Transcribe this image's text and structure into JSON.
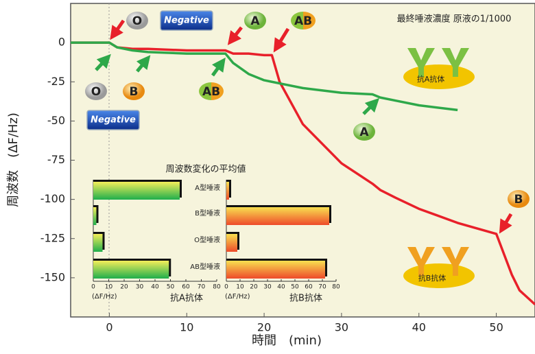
{
  "chart_data": [
    {
      "type": "line",
      "xlabel": "時間　(min)",
      "ylabel": "周波数　(ΔF/Hz)",
      "x": [
        -5,
        0,
        1,
        3,
        5,
        10,
        15,
        16,
        18,
        20,
        21,
        22,
        25,
        30,
        34,
        35,
        37,
        40,
        45,
        50,
        51,
        52,
        53,
        55
      ],
      "series": [
        {
          "name": "red",
          "color": "#e8202a",
          "values": [
            0,
            0,
            -3,
            -4,
            -4,
            -5,
            -5,
            -7,
            -7,
            -8,
            -8,
            -25,
            -52,
            -77,
            -90,
            -94,
            -99,
            -106,
            -115,
            -122,
            -135,
            -148,
            -158,
            -167
          ]
        },
        {
          "name": "green",
          "color": "#2ea84a",
          "values": [
            0,
            0,
            -3,
            -5,
            -6,
            -7,
            -7,
            -13,
            -20,
            -24,
            -25,
            -26,
            -29,
            -32,
            -33,
            -35,
            -37,
            -40,
            -43,
            null,
            null,
            null,
            null,
            null
          ]
        }
      ],
      "xlim": [
        -5,
        55
      ],
      "ylim": [
        -175,
        25
      ],
      "xticks": [
        0,
        10,
        20,
        30,
        40,
        50
      ],
      "yticks": [
        0,
        -25,
        -50,
        -75,
        -100,
        -125,
        -150
      ],
      "annotations": [
        "O",
        "Negative",
        "A",
        "AB",
        "最終唾液濃度 原液の1/1000",
        "O",
        "B",
        "Negative",
        "AB",
        "A",
        "抗A抗体",
        "B",
        "抗B抗体"
      ]
    },
    {
      "type": "barh",
      "title": "周波数変化の平均値",
      "categories": [
        "A型唾液",
        "B型唾液",
        "O型唾液",
        "AB型唾液"
      ],
      "values": [
        56,
        2,
        6,
        49
      ],
      "xlim": [
        0,
        80
      ],
      "xticks": [
        0,
        10,
        20,
        30,
        40,
        50,
        60,
        70,
        80
      ],
      "unit": "(ΔF/Hz)",
      "xlabel": "抗A抗体"
    },
    {
      "type": "barh",
      "values": [
        2,
        75,
        8,
        72
      ],
      "xlim": [
        0,
        80
      ],
      "xticks": [
        0,
        10,
        20,
        30,
        40,
        50,
        60,
        70,
        80
      ],
      "unit": "(ΔF/Hz)",
      "xlabel": "抗B抗体"
    }
  ]
}
